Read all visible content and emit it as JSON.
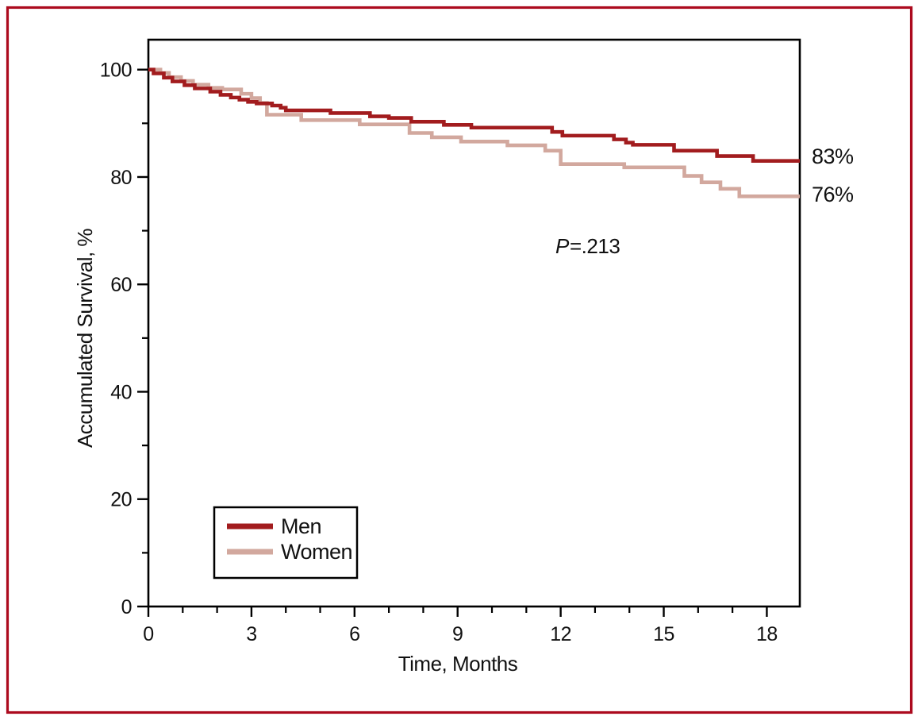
{
  "figure": {
    "frame_color": "#AC0A1E",
    "axis_color": "#000000",
    "background": "#FFFFFF"
  },
  "chart_data": {
    "type": "line",
    "subtype": "kaplan-meier-step",
    "title": "",
    "xlabel": "Time, Months",
    "ylabel": "Accumulated Survival, %",
    "xlim": [
      0,
      18.96
    ],
    "ylim": [
      0,
      100
    ],
    "grid": false,
    "x_axis": {
      "major_ticks": [
        0,
        3,
        6,
        9,
        12,
        15,
        18
      ],
      "minor_tick_step": 1
    },
    "y_axis": {
      "major_ticks": [
        0,
        20,
        40,
        60,
        80,
        100
      ],
      "minor_ticks": [
        10,
        30,
        50,
        70,
        90
      ]
    },
    "legend_position": "inside-lower-left",
    "annotations": {
      "p_italic": "P",
      "p_rest": "=.213"
    },
    "series": [
      {
        "name": "Men",
        "color": "#A21C1E",
        "end_label": "83%",
        "final_value": 83,
        "points": [
          [
            0,
            100
          ],
          [
            0.15,
            99.3
          ],
          [
            0.45,
            98.5
          ],
          [
            0.7,
            97.8
          ],
          [
            1.05,
            97.1
          ],
          [
            1.35,
            96.5
          ],
          [
            1.8,
            95.9
          ],
          [
            2.1,
            95.3
          ],
          [
            2.4,
            94.8
          ],
          [
            2.65,
            94.4
          ],
          [
            2.9,
            94.0
          ],
          [
            3.15,
            93.7
          ],
          [
            3.6,
            93.3
          ],
          [
            3.85,
            92.9
          ],
          [
            4.0,
            92.4
          ],
          [
            5.3,
            91.9
          ],
          [
            6.45,
            91.3
          ],
          [
            7.0,
            91.0
          ],
          [
            7.65,
            90.3
          ],
          [
            8.6,
            89.7
          ],
          [
            9.4,
            89.2
          ],
          [
            11.75,
            88.4
          ],
          [
            12.05,
            87.7
          ],
          [
            13.55,
            87.0
          ],
          [
            13.9,
            86.4
          ],
          [
            14.1,
            86.0
          ],
          [
            15.3,
            84.9
          ],
          [
            16.55,
            83.9
          ],
          [
            17.6,
            83.0
          ]
        ]
      },
      {
        "name": "Women",
        "color": "#D2A89E",
        "end_label": "76%",
        "final_value": 76,
        "points": [
          [
            0,
            100
          ],
          [
            0.35,
            99.4
          ],
          [
            0.6,
            98.6
          ],
          [
            0.95,
            97.9
          ],
          [
            1.3,
            97.2
          ],
          [
            1.75,
            96.6
          ],
          [
            2.15,
            96.3
          ],
          [
            2.7,
            95.5
          ],
          [
            3.0,
            94.7
          ],
          [
            3.25,
            93.8
          ],
          [
            3.45,
            91.6
          ],
          [
            4.45,
            90.6
          ],
          [
            6.15,
            89.8
          ],
          [
            7.6,
            88.2
          ],
          [
            8.25,
            87.4
          ],
          [
            9.1,
            86.6
          ],
          [
            10.45,
            85.9
          ],
          [
            11.55,
            84.9
          ],
          [
            12.0,
            82.4
          ],
          [
            13.85,
            81.8
          ],
          [
            15.6,
            80.2
          ],
          [
            16.1,
            79.0
          ],
          [
            16.65,
            77.8
          ],
          [
            17.2,
            76.4
          ]
        ]
      }
    ]
  }
}
